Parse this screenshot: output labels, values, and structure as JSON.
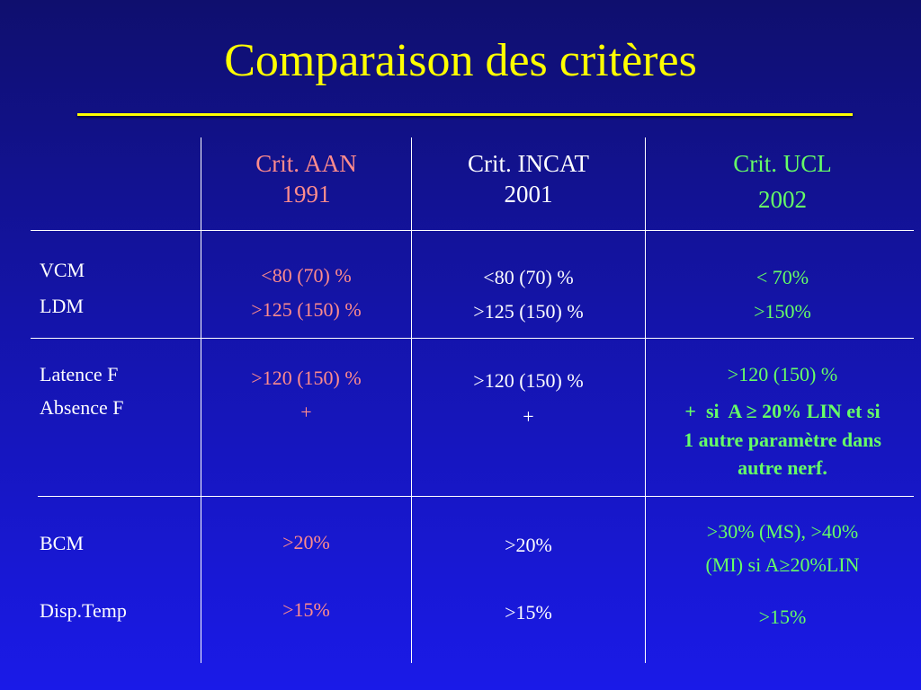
{
  "title": "Comparaison des critères",
  "columns": {
    "aan": [
      "Crit. AAN",
      "1991"
    ],
    "incat": [
      "Crit. INCAT",
      "2001"
    ],
    "ucl": [
      "Crit. UCL",
      "2002"
    ]
  },
  "rows": {
    "r1": {
      "labels": [
        "VCM",
        "LDM"
      ],
      "aan": [
        "<80 (70) %",
        ">125 (150) %"
      ],
      "incat": [
        "<80 (70) %",
        ">125 (150) %"
      ],
      "ucl": [
        "< 70%",
        ">150%"
      ]
    },
    "r2": {
      "labels": [
        "Latence F",
        "Absence F"
      ],
      "aan": [
        ">120 (150) %",
        "+"
      ],
      "incat": [
        ">120 (150) %",
        "+"
      ],
      "ucl": [
        ">120 (150) %",
        "+  si  A ≥ 20% LIN et si",
        "1 autre paramètre dans",
        "autre nerf."
      ]
    },
    "r3": {
      "labels": [
        "BCM",
        "Disp.Temp"
      ],
      "aan": [
        ">20%",
        ">15%"
      ],
      "incat": [
        ">20%",
        ">15%"
      ],
      "ucl": [
        ">30% (MS), >40%",
        "(MI) si A≥20%LIN",
        ">15%"
      ]
    }
  },
  "colors": {
    "title": "#ffff00",
    "aan": "#ff8c8c",
    "incat": "#ffffff",
    "ucl": "#66ff66",
    "background_top": "#0f0f6e",
    "background_bottom": "#1a1ae8"
  }
}
